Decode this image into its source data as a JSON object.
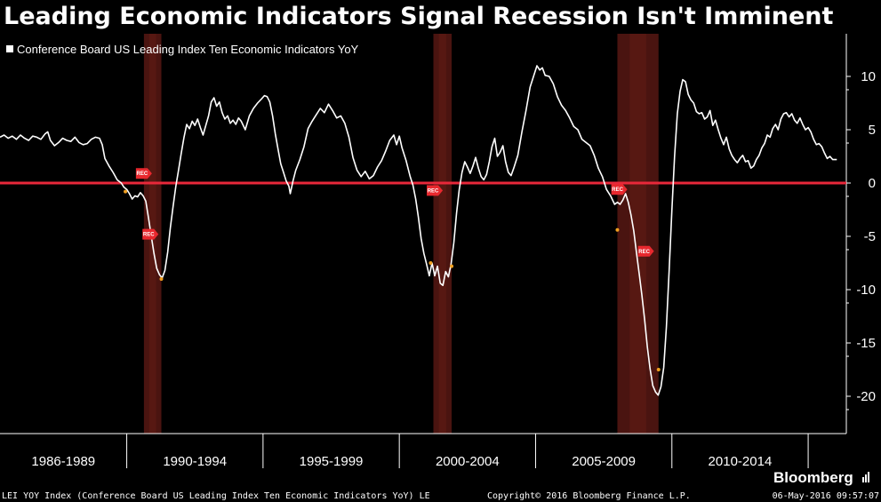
{
  "chart_data": {
    "type": "line",
    "title": "Leading Economic Indicators Signal Recession Isn't Imminent",
    "legend": "Conference Board US Leading Index Ten Economic Indicators YoY",
    "legend_position": "top-left",
    "y_ticks": [
      10,
      5,
      0,
      -5,
      -10,
      -15,
      -20
    ],
    "ylim": [
      -23.5,
      14
    ],
    "xlim": [
      1985.3,
      2016.35
    ],
    "y_axis_side": "right",
    "grid": false,
    "categories": [
      {
        "label": "1986-1989",
        "start": 1985.3,
        "end": 1989.95
      },
      {
        "label": "1990-1994",
        "start": 1989.95,
        "end": 1994.95
      },
      {
        "label": "1995-1999",
        "start": 1994.95,
        "end": 1999.95
      },
      {
        "label": "2000-2004",
        "start": 1999.95,
        "end": 2004.95
      },
      {
        "label": "2005-2009",
        "start": 2004.95,
        "end": 2009.95
      },
      {
        "label": "2010-2014",
        "start": 2009.95,
        "end": 2014.95
      }
    ],
    "recessions": [
      {
        "start": 1990.58,
        "end": 1991.22
      },
      {
        "start": 2001.2,
        "end": 2001.87
      },
      {
        "start": 2007.95,
        "end": 2009.46
      }
    ],
    "zero_line": 0,
    "rec_marker_label": "REC",
    "rec_markers": [
      {
        "x": 1990.58,
        "y": 0.9
      },
      {
        "x": 1990.82,
        "y": -4.8
      },
      {
        "x": 2001.25,
        "y": -0.7
      },
      {
        "x": 2008.02,
        "y": -0.6
      },
      {
        "x": 2009.0,
        "y": -6.4
      }
    ],
    "orange_points": [
      {
        "x": 1989.9,
        "y": -0.8
      },
      {
        "x": 1991.22,
        "y": -9.0
      },
      {
        "x": 2001.1,
        "y": -7.5
      },
      {
        "x": 2001.87,
        "y": -7.8
      },
      {
        "x": 2007.95,
        "y": -4.4
      },
      {
        "x": 2009.46,
        "y": -17.5
      }
    ],
    "series": [
      {
        "color": "#ffffff",
        "points": [
          [
            1985.3,
            4.3
          ],
          [
            1985.45,
            4.5
          ],
          [
            1985.6,
            4.2
          ],
          [
            1985.75,
            4.4
          ],
          [
            1985.9,
            4.1
          ],
          [
            1986.05,
            4.5
          ],
          [
            1986.2,
            4.2
          ],
          [
            1986.35,
            4.0
          ],
          [
            1986.5,
            4.4
          ],
          [
            1986.65,
            4.3
          ],
          [
            1986.8,
            4.1
          ],
          [
            1986.95,
            4.6
          ],
          [
            1987.05,
            4.8
          ],
          [
            1987.15,
            4.0
          ],
          [
            1987.3,
            3.5
          ],
          [
            1987.45,
            3.8
          ],
          [
            1987.6,
            4.2
          ],
          [
            1987.75,
            4.0
          ],
          [
            1987.9,
            3.9
          ],
          [
            1988.05,
            4.3
          ],
          [
            1988.2,
            3.8
          ],
          [
            1988.35,
            3.6
          ],
          [
            1988.5,
            3.7
          ],
          [
            1988.65,
            4.1
          ],
          [
            1988.8,
            4.3
          ],
          [
            1988.95,
            4.2
          ],
          [
            1989.05,
            3.6
          ],
          [
            1989.15,
            2.3
          ],
          [
            1989.3,
            1.6
          ],
          [
            1989.45,
            1.0
          ],
          [
            1989.6,
            0.3
          ],
          [
            1989.75,
            0.0
          ],
          [
            1989.85,
            -0.4
          ],
          [
            1989.95,
            -0.6
          ],
          [
            1990.05,
            -1.0
          ],
          [
            1990.15,
            -1.5
          ],
          [
            1990.25,
            -1.2
          ],
          [
            1990.35,
            -1.3
          ],
          [
            1990.45,
            -0.9
          ],
          [
            1990.55,
            -1.2
          ],
          [
            1990.65,
            -1.7
          ],
          [
            1990.75,
            -3.3
          ],
          [
            1990.85,
            -5.0
          ],
          [
            1990.95,
            -6.6
          ],
          [
            1991.05,
            -8.0
          ],
          [
            1991.15,
            -8.6
          ],
          [
            1991.25,
            -8.9
          ],
          [
            1991.35,
            -8.2
          ],
          [
            1991.45,
            -6.5
          ],
          [
            1991.55,
            -4.2
          ],
          [
            1991.65,
            -2.2
          ],
          [
            1991.75,
            -0.3
          ],
          [
            1991.85,
            1.2
          ],
          [
            1991.95,
            2.8
          ],
          [
            1992.05,
            4.3
          ],
          [
            1992.15,
            5.5
          ],
          [
            1992.25,
            5.1
          ],
          [
            1992.35,
            5.8
          ],
          [
            1992.45,
            5.4
          ],
          [
            1992.55,
            6.0
          ],
          [
            1992.65,
            5.2
          ],
          [
            1992.75,
            4.5
          ],
          [
            1992.85,
            5.4
          ],
          [
            1992.95,
            6.3
          ],
          [
            1993.05,
            7.6
          ],
          [
            1993.15,
            8.0
          ],
          [
            1993.25,
            7.2
          ],
          [
            1993.35,
            7.6
          ],
          [
            1993.45,
            6.6
          ],
          [
            1993.55,
            6.0
          ],
          [
            1993.65,
            6.3
          ],
          [
            1993.75,
            5.6
          ],
          [
            1993.85,
            5.9
          ],
          [
            1993.95,
            5.5
          ],
          [
            1994.05,
            6.1
          ],
          [
            1994.15,
            5.8
          ],
          [
            1994.3,
            5.0
          ],
          [
            1994.45,
            6.3
          ],
          [
            1994.6,
            7.0
          ],
          [
            1994.75,
            7.5
          ],
          [
            1994.9,
            7.9
          ],
          [
            1995.0,
            8.2
          ],
          [
            1995.1,
            8.1
          ],
          [
            1995.2,
            7.6
          ],
          [
            1995.3,
            6.3
          ],
          [
            1995.4,
            4.6
          ],
          [
            1995.5,
            3.2
          ],
          [
            1995.6,
            1.8
          ],
          [
            1995.7,
            1.0
          ],
          [
            1995.8,
            0.2
          ],
          [
            1995.9,
            -0.3
          ],
          [
            1995.95,
            -1.0
          ],
          [
            1996.05,
            0.2
          ],
          [
            1996.15,
            1.2
          ],
          [
            1996.3,
            2.2
          ],
          [
            1996.45,
            3.4
          ],
          [
            1996.6,
            5.1
          ],
          [
            1996.75,
            5.8
          ],
          [
            1996.9,
            6.4
          ],
          [
            1997.05,
            7.0
          ],
          [
            1997.2,
            6.6
          ],
          [
            1997.35,
            7.4
          ],
          [
            1997.5,
            6.8
          ],
          [
            1997.65,
            6.1
          ],
          [
            1997.8,
            6.3
          ],
          [
            1997.95,
            5.6
          ],
          [
            1998.1,
            4.3
          ],
          [
            1998.25,
            2.4
          ],
          [
            1998.4,
            1.2
          ],
          [
            1998.55,
            0.6
          ],
          [
            1998.7,
            1.1
          ],
          [
            1998.85,
            0.4
          ],
          [
            1999.0,
            0.7
          ],
          [
            1999.15,
            1.5
          ],
          [
            1999.3,
            2.1
          ],
          [
            1999.45,
            3.0
          ],
          [
            1999.6,
            4.0
          ],
          [
            1999.75,
            4.5
          ],
          [
            1999.85,
            3.6
          ],
          [
            1999.95,
            4.4
          ],
          [
            2000.05,
            3.3
          ],
          [
            2000.2,
            2.1
          ],
          [
            2000.35,
            0.6
          ],
          [
            2000.45,
            -0.2
          ],
          [
            2000.55,
            -1.5
          ],
          [
            2000.65,
            -3.2
          ],
          [
            2000.75,
            -5.2
          ],
          [
            2000.85,
            -6.6
          ],
          [
            2000.95,
            -7.6
          ],
          [
            2001.05,
            -8.7
          ],
          [
            2001.15,
            -7.5
          ],
          [
            2001.25,
            -8.7
          ],
          [
            2001.35,
            -7.8
          ],
          [
            2001.45,
            -9.4
          ],
          [
            2001.55,
            -9.6
          ],
          [
            2001.65,
            -8.3
          ],
          [
            2001.75,
            -8.8
          ],
          [
            2001.85,
            -7.6
          ],
          [
            2001.95,
            -5.6
          ],
          [
            2002.05,
            -2.8
          ],
          [
            2002.15,
            -0.6
          ],
          [
            2002.25,
            1.0
          ],
          [
            2002.35,
            2.0
          ],
          [
            2002.45,
            1.5
          ],
          [
            2002.55,
            0.9
          ],
          [
            2002.65,
            1.6
          ],
          [
            2002.75,
            2.4
          ],
          [
            2002.85,
            1.4
          ],
          [
            2002.95,
            0.6
          ],
          [
            2003.05,
            0.3
          ],
          [
            2003.15,
            0.8
          ],
          [
            2003.25,
            2.0
          ],
          [
            2003.35,
            3.4
          ],
          [
            2003.45,
            4.2
          ],
          [
            2003.55,
            2.5
          ],
          [
            2003.65,
            2.9
          ],
          [
            2003.75,
            3.5
          ],
          [
            2003.85,
            2.0
          ],
          [
            2003.95,
            1.0
          ],
          [
            2004.05,
            0.7
          ],
          [
            2004.15,
            1.4
          ],
          [
            2004.3,
            2.6
          ],
          [
            2004.45,
            4.8
          ],
          [
            2004.6,
            6.8
          ],
          [
            2004.75,
            9.0
          ],
          [
            2004.9,
            10.2
          ],
          [
            2005.0,
            11.0
          ],
          [
            2005.1,
            10.6
          ],
          [
            2005.2,
            10.8
          ],
          [
            2005.3,
            10.1
          ],
          [
            2005.45,
            10.0
          ],
          [
            2005.6,
            9.3
          ],
          [
            2005.75,
            8.1
          ],
          [
            2005.9,
            7.3
          ],
          [
            2006.05,
            6.8
          ],
          [
            2006.2,
            6.1
          ],
          [
            2006.35,
            5.3
          ],
          [
            2006.5,
            5.0
          ],
          [
            2006.65,
            4.1
          ],
          [
            2006.8,
            3.8
          ],
          [
            2006.95,
            3.5
          ],
          [
            2007.1,
            2.6
          ],
          [
            2007.25,
            1.4
          ],
          [
            2007.4,
            0.6
          ],
          [
            2007.55,
            -0.6
          ],
          [
            2007.7,
            -1.2
          ],
          [
            2007.85,
            -2.0
          ],
          [
            2007.95,
            -1.8
          ],
          [
            2008.05,
            -2.0
          ],
          [
            2008.15,
            -1.6
          ],
          [
            2008.25,
            -1.0
          ],
          [
            2008.35,
            -1.8
          ],
          [
            2008.45,
            -3.0
          ],
          [
            2008.55,
            -4.5
          ],
          [
            2008.65,
            -6.5
          ],
          [
            2008.75,
            -8.5
          ],
          [
            2008.85,
            -10.5
          ],
          [
            2008.95,
            -12.8
          ],
          [
            2009.05,
            -15.4
          ],
          [
            2009.15,
            -17.4
          ],
          [
            2009.25,
            -19.0
          ],
          [
            2009.35,
            -19.6
          ],
          [
            2009.45,
            -19.9
          ],
          [
            2009.55,
            -19.1
          ],
          [
            2009.65,
            -17.3
          ],
          [
            2009.75,
            -13.5
          ],
          [
            2009.85,
            -8.2
          ],
          [
            2009.95,
            -2.5
          ],
          [
            2010.05,
            2.5
          ],
          [
            2010.15,
            6.5
          ],
          [
            2010.25,
            8.6
          ],
          [
            2010.35,
            9.7
          ],
          [
            2010.45,
            9.5
          ],
          [
            2010.55,
            8.3
          ],
          [
            2010.65,
            7.8
          ],
          [
            2010.75,
            7.5
          ],
          [
            2010.85,
            6.7
          ],
          [
            2010.95,
            6.5
          ],
          [
            2011.05,
            6.6
          ],
          [
            2011.15,
            6.0
          ],
          [
            2011.25,
            6.2
          ],
          [
            2011.35,
            6.8
          ],
          [
            2011.45,
            5.4
          ],
          [
            2011.55,
            5.9
          ],
          [
            2011.65,
            5.0
          ],
          [
            2011.75,
            4.2
          ],
          [
            2011.85,
            3.6
          ],
          [
            2011.95,
            4.3
          ],
          [
            2012.05,
            3.2
          ],
          [
            2012.15,
            2.6
          ],
          [
            2012.25,
            2.2
          ],
          [
            2012.35,
            1.9
          ],
          [
            2012.45,
            2.3
          ],
          [
            2012.55,
            2.6
          ],
          [
            2012.65,
            2.0
          ],
          [
            2012.75,
            2.1
          ],
          [
            2012.85,
            1.4
          ],
          [
            2012.95,
            1.6
          ],
          [
            2013.05,
            2.2
          ],
          [
            2013.15,
            2.6
          ],
          [
            2013.25,
            3.3
          ],
          [
            2013.35,
            3.7
          ],
          [
            2013.45,
            4.5
          ],
          [
            2013.55,
            4.3
          ],
          [
            2013.65,
            5.1
          ],
          [
            2013.75,
            5.5
          ],
          [
            2013.85,
            5.0
          ],
          [
            2013.95,
            6.0
          ],
          [
            2014.05,
            6.5
          ],
          [
            2014.15,
            6.6
          ],
          [
            2014.25,
            6.2
          ],
          [
            2014.35,
            6.5
          ],
          [
            2014.45,
            5.9
          ],
          [
            2014.55,
            5.6
          ],
          [
            2014.65,
            6.1
          ],
          [
            2014.75,
            5.5
          ],
          [
            2014.85,
            5.0
          ],
          [
            2014.95,
            5.2
          ],
          [
            2015.05,
            4.8
          ],
          [
            2015.15,
            4.1
          ],
          [
            2015.25,
            3.6
          ],
          [
            2015.35,
            3.7
          ],
          [
            2015.45,
            3.4
          ],
          [
            2015.55,
            2.8
          ],
          [
            2015.65,
            2.3
          ],
          [
            2015.75,
            2.5
          ],
          [
            2015.85,
            2.2
          ],
          [
            2016.0,
            2.2
          ]
        ]
      }
    ]
  },
  "branding": {
    "logo": "Bloomberg"
  },
  "footer": {
    "left": "LEI YOY Index (Conference Board US Leading Index Ten Economic Indicators YoY) LE",
    "center": "Copyright© 2016 Bloomberg Finance L.P.",
    "right": "06-May-2016 09:57:07"
  },
  "colors": {
    "background": "#000000",
    "line": "#ffffff",
    "zero_line": "#e8283a",
    "recession_band": "#4a1410",
    "marker": "#e8282e",
    "orange_point": "#f0a020"
  }
}
